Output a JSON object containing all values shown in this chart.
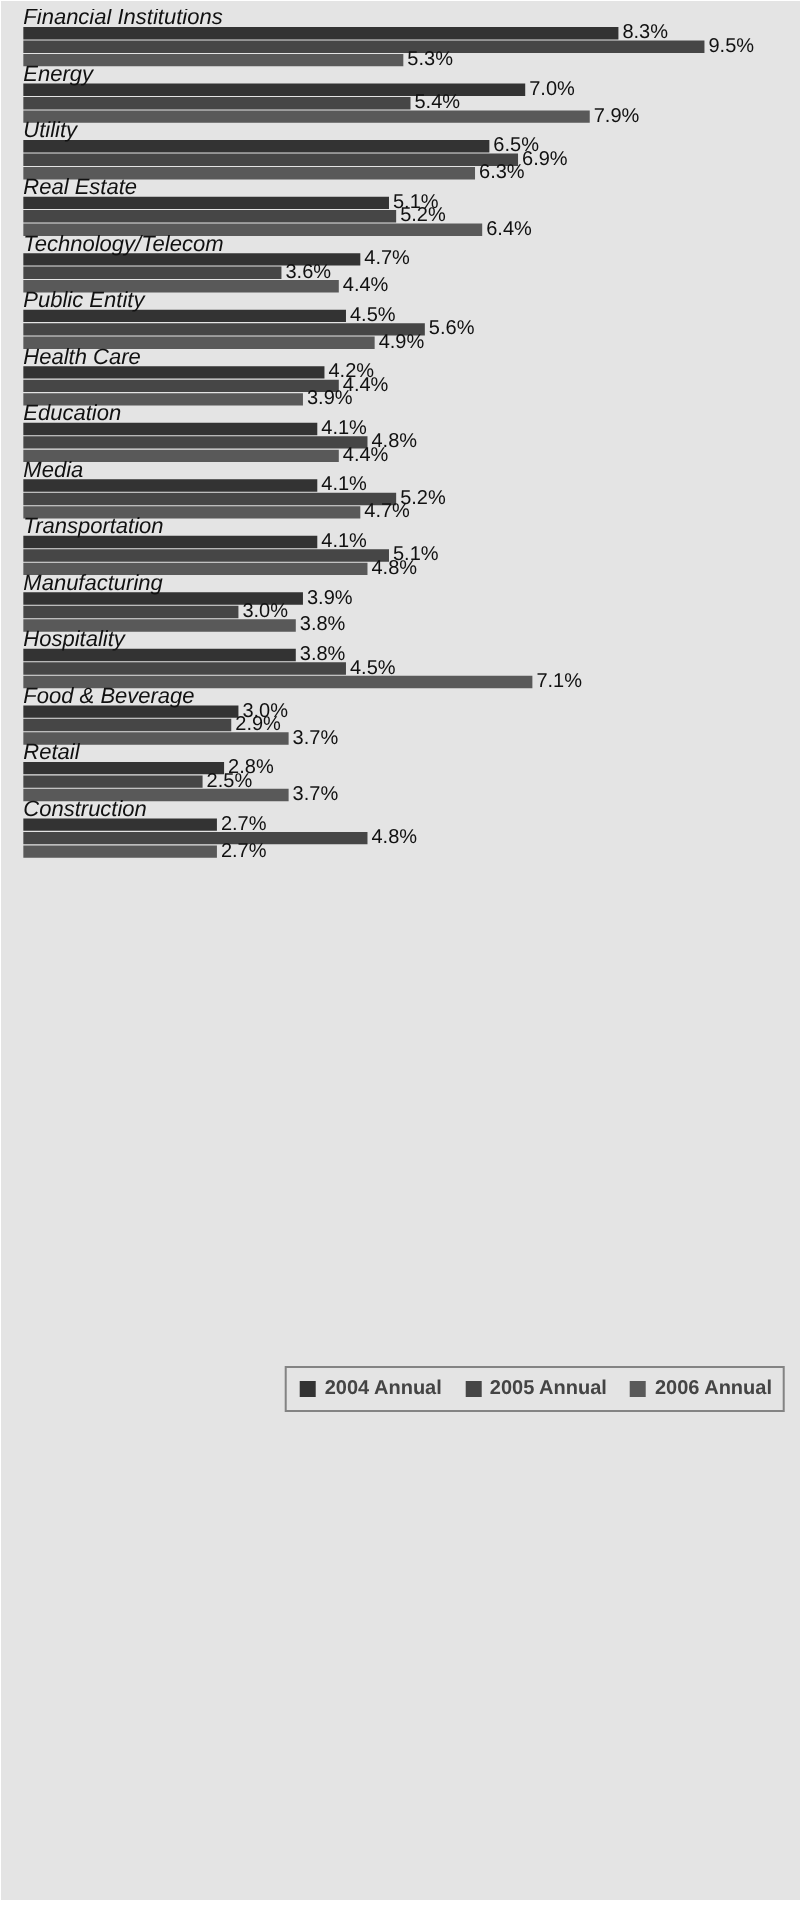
{
  "chart_data": {
    "type": "bar",
    "orientation": "horizontal",
    "legend": "bottom",
    "categories": [
      "Financial Institutions",
      "Energy",
      "Utility",
      "Real Estate",
      "Technology/Telecom",
      "Public Entity",
      "Health Care",
      "Education",
      "Media",
      "Transportation",
      "Manufacturing",
      "Hospitality",
      "Food & Beverage",
      "Retail",
      "Construction"
    ],
    "series": [
      {
        "name": "2004 Annual",
        "color": "#333333",
        "values": [
          8.3,
          7.0,
          6.5,
          5.1,
          4.7,
          4.5,
          4.2,
          4.1,
          4.1,
          4.1,
          3.9,
          3.8,
          3.0,
          2.8,
          2.7
        ],
        "value_labels": [
          "8.3%",
          "7.0%",
          "6.5%",
          "5.1%",
          "4.7%",
          "4.5%",
          "4.2%",
          "4.1%",
          "4.1%",
          "4.1%",
          "3.9%",
          "3.8%",
          "3.0%",
          "2.8%",
          "2.7%"
        ]
      },
      {
        "name": "2005 Annual",
        "color": "#464646",
        "values": [
          9.5,
          5.4,
          6.9,
          5.2,
          3.6,
          5.6,
          4.4,
          4.8,
          5.2,
          5.1,
          3.0,
          4.5,
          2.9,
          2.5,
          4.8
        ],
        "value_labels": [
          "9.5%",
          "5.4%",
          "6.9%",
          "5.2%",
          "3.6%",
          "5.6%",
          "4.4%",
          "4.8%",
          "5.2%",
          "5.1%",
          "3.0%",
          "4.5%",
          "2.9%",
          "2.5%",
          "4.8%"
        ]
      },
      {
        "name": "2006 Annual",
        "color": "#595959",
        "values": [
          5.3,
          7.9,
          6.3,
          6.4,
          4.4,
          4.9,
          3.9,
          4.4,
          4.7,
          4.8,
          3.8,
          7.1,
          3.7,
          3.7,
          2.7
        ],
        "value_labels": [
          "5.3%",
          "7.9%",
          "6.3%",
          "6.4%",
          "4.4%",
          "4.9%",
          "3.9%",
          "4.4%",
          "4.7%",
          "4.8%",
          "3.8%",
          "7.1%",
          "3.7%",
          "3.7%",
          "2.7%"
        ]
      }
    ]
  }
}
